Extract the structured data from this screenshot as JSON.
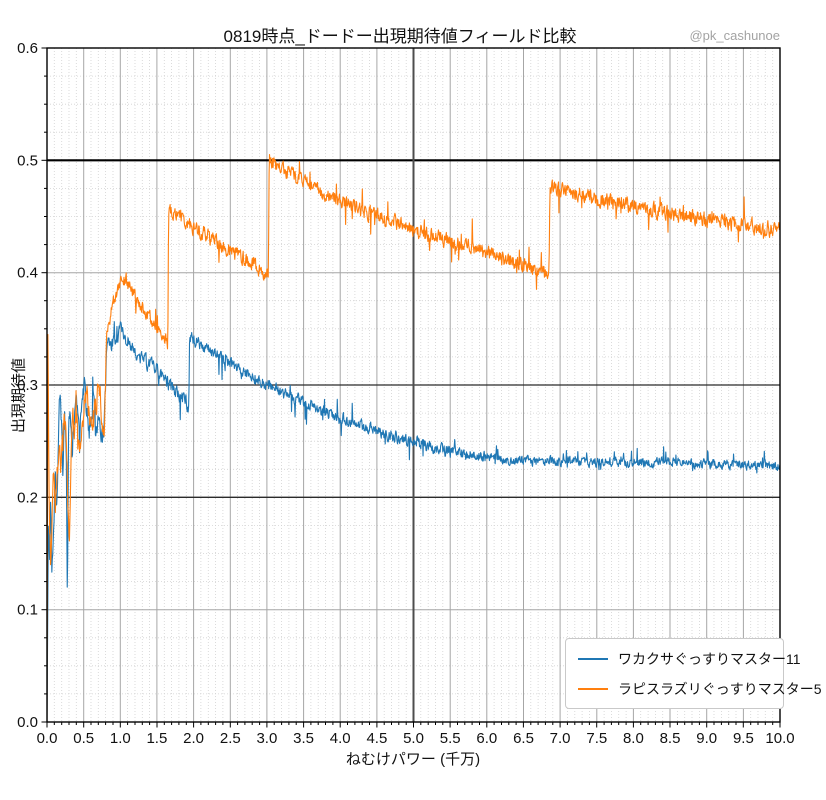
{
  "title": "0819時点_ドードー出現期待値フィールド比較",
  "watermark": "@pk_cashunoe",
  "chart_data": {
    "type": "line",
    "title": "0819時点_ドードー出現期待値フィールド比較",
    "xlabel": "ねむけパワー (千万)",
    "ylabel": "出現期待値",
    "xlim": [
      0,
      10
    ],
    "ylim": [
      0,
      0.6
    ],
    "x_tick_labels": [
      "0.0",
      "0.5",
      "1.0",
      "1.5",
      "2.0",
      "2.5",
      "3.0",
      "3.5",
      "4.0",
      "4.5",
      "5.0",
      "5.5",
      "6.0",
      "6.5",
      "7.0",
      "7.5",
      "8.0",
      "8.5",
      "9.0",
      "9.5",
      "10.0"
    ],
    "y_tick_labels": [
      "0.0",
      "0.1",
      "0.2",
      "0.3",
      "0.4",
      "0.5",
      "0.6"
    ],
    "grid": {
      "major_color": "#a6a6a6",
      "minor_color": "#d2d2d2",
      "x_major_step": 0.5,
      "x_minor_step": 0.1,
      "y_major_step": 0.1,
      "y_minor_step": 0.025
    },
    "reference_lines": [
      {
        "axis": "y",
        "value": 0.5,
        "color": "#000000",
        "width": 2.2
      },
      {
        "axis": "y",
        "value": 0.3,
        "color": "#2b2b2b",
        "width": 1.3
      },
      {
        "axis": "y",
        "value": 0.2,
        "color": "#2b2b2b",
        "width": 1.3
      },
      {
        "axis": "x",
        "value": 5.0,
        "color": "#4d4d4d",
        "width": 2.0
      }
    ],
    "legend_position": "lower right",
    "series": [
      {
        "name": "ワカクサぐっすりマスター11",
        "color": "#1f77b4",
        "noise_zones": [
          [
            0.8,
            0.013
          ],
          [
            1.95,
            0.009
          ],
          [
            6.0,
            0.0075
          ],
          [
            10.0,
            0.006
          ]
        ],
        "keypoints": [
          [
            0.0,
            0.0
          ],
          [
            0.02,
            0.185
          ],
          [
            0.035,
            0.13
          ],
          [
            0.05,
            0.205
          ],
          [
            0.065,
            0.125
          ],
          [
            0.09,
            0.18
          ],
          [
            0.115,
            0.215
          ],
          [
            0.135,
            0.185
          ],
          [
            0.155,
            0.25
          ],
          [
            0.175,
            0.295
          ],
          [
            0.195,
            0.27
          ],
          [
            0.215,
            0.225
          ],
          [
            0.24,
            0.27
          ],
          [
            0.262,
            0.25
          ],
          [
            0.278,
            0.095
          ],
          [
            0.295,
            0.27
          ],
          [
            0.315,
            0.285
          ],
          [
            0.34,
            0.24
          ],
          [
            0.365,
            0.265
          ],
          [
            0.39,
            0.29
          ],
          [
            0.415,
            0.275
          ],
          [
            0.44,
            0.252
          ],
          [
            0.465,
            0.27
          ],
          [
            0.49,
            0.295
          ],
          [
            0.515,
            0.3
          ],
          [
            0.545,
            0.275
          ],
          [
            0.575,
            0.258
          ],
          [
            0.605,
            0.275
          ],
          [
            0.635,
            0.288
          ],
          [
            0.665,
            0.258
          ],
          [
            0.7,
            0.268
          ],
          [
            0.735,
            0.258
          ],
          [
            0.775,
            0.247
          ],
          [
            0.8,
            0.3
          ],
          [
            0.825,
            0.34
          ],
          [
            0.86,
            0.332
          ],
          [
            0.9,
            0.34
          ],
          [
            0.95,
            0.338
          ],
          [
            1.0,
            0.35
          ],
          [
            1.06,
            0.342
          ],
          [
            1.12,
            0.337
          ],
          [
            1.2,
            0.33
          ],
          [
            1.3,
            0.324
          ],
          [
            1.4,
            0.318
          ],
          [
            1.5,
            0.313
          ],
          [
            1.6,
            0.305
          ],
          [
            1.7,
            0.298
          ],
          [
            1.8,
            0.292
          ],
          [
            1.9,
            0.285
          ],
          [
            1.935,
            0.278
          ],
          [
            1.945,
            0.344
          ],
          [
            2.0,
            0.34
          ],
          [
            2.1,
            0.336
          ],
          [
            2.25,
            0.33
          ],
          [
            2.4,
            0.323
          ],
          [
            2.6,
            0.315
          ],
          [
            2.8,
            0.308
          ],
          [
            3.0,
            0.3
          ],
          [
            3.25,
            0.292
          ],
          [
            3.5,
            0.285
          ],
          [
            3.75,
            0.278
          ],
          [
            4.0,
            0.271
          ],
          [
            4.25,
            0.265
          ],
          [
            4.5,
            0.259
          ],
          [
            4.75,
            0.254
          ],
          [
            5.0,
            0.249
          ],
          [
            5.25,
            0.245
          ],
          [
            5.5,
            0.241
          ],
          [
            5.75,
            0.238
          ],
          [
            6.0,
            0.236
          ],
          [
            6.25,
            0.234
          ],
          [
            6.5,
            0.233
          ],
          [
            6.75,
            0.232
          ],
          [
            7.0,
            0.232
          ],
          [
            7.5,
            0.231
          ],
          [
            8.0,
            0.231
          ],
          [
            8.5,
            0.231
          ],
          [
            9.0,
            0.23
          ],
          [
            9.5,
            0.229
          ],
          [
            10.0,
            0.228
          ]
        ]
      },
      {
        "name": "ラピスラズリぐっすりマスター5",
        "color": "#ff7f0e",
        "noise_zones": [
          [
            0.8,
            0.015
          ],
          [
            1.66,
            0.009
          ],
          [
            10.0,
            0.0095
          ]
        ],
        "keypoints": [
          [
            0.0,
            0.0
          ],
          [
            0.012,
            0.345
          ],
          [
            0.03,
            0.19
          ],
          [
            0.05,
            0.125
          ],
          [
            0.07,
            0.185
          ],
          [
            0.09,
            0.222
          ],
          [
            0.115,
            0.188
          ],
          [
            0.14,
            0.222
          ],
          [
            0.165,
            0.248
          ],
          [
            0.19,
            0.222
          ],
          [
            0.215,
            0.252
          ],
          [
            0.24,
            0.275
          ],
          [
            0.265,
            0.252
          ],
          [
            0.285,
            0.2
          ],
          [
            0.305,
            0.168
          ],
          [
            0.33,
            0.24
          ],
          [
            0.355,
            0.275
          ],
          [
            0.38,
            0.258
          ],
          [
            0.405,
            0.272
          ],
          [
            0.43,
            0.252
          ],
          [
            0.455,
            0.238
          ],
          [
            0.48,
            0.262
          ],
          [
            0.51,
            0.282
          ],
          [
            0.545,
            0.293
          ],
          [
            0.58,
            0.272
          ],
          [
            0.615,
            0.255
          ],
          [
            0.65,
            0.273
          ],
          [
            0.685,
            0.29
          ],
          [
            0.72,
            0.298
          ],
          [
            0.75,
            0.272
          ],
          [
            0.78,
            0.255
          ],
          [
            0.795,
            0.3
          ],
          [
            0.81,
            0.342
          ],
          [
            0.85,
            0.358
          ],
          [
            0.9,
            0.373
          ],
          [
            0.95,
            0.383
          ],
          [
            1.0,
            0.39
          ],
          [
            1.05,
            0.394
          ],
          [
            1.1,
            0.39
          ],
          [
            1.18,
            0.381
          ],
          [
            1.26,
            0.372
          ],
          [
            1.34,
            0.364
          ],
          [
            1.42,
            0.357
          ],
          [
            1.5,
            0.351
          ],
          [
            1.58,
            0.345
          ],
          [
            1.64,
            0.34
          ],
          [
            1.648,
            0.337
          ],
          [
            1.658,
            0.455
          ],
          [
            1.75,
            0.451
          ],
          [
            1.9,
            0.445
          ],
          [
            2.05,
            0.439
          ],
          [
            2.2,
            0.432
          ],
          [
            2.4,
            0.424
          ],
          [
            2.6,
            0.416
          ],
          [
            2.8,
            0.407
          ],
          [
            2.95,
            0.401
          ],
          [
            3.02,
            0.397
          ],
          [
            3.032,
            0.499
          ],
          [
            3.2,
            0.492
          ],
          [
            3.4,
            0.485
          ],
          [
            3.6,
            0.477
          ],
          [
            3.8,
            0.47
          ],
          [
            4.0,
            0.464
          ],
          [
            4.25,
            0.457
          ],
          [
            4.5,
            0.451
          ],
          [
            4.75,
            0.445
          ],
          [
            5.0,
            0.439
          ],
          [
            5.25,
            0.433
          ],
          [
            5.5,
            0.428
          ],
          [
            5.75,
            0.423
          ],
          [
            6.0,
            0.417
          ],
          [
            6.25,
            0.412
          ],
          [
            6.5,
            0.407
          ],
          [
            6.7,
            0.402
          ],
          [
            6.85,
            0.397
          ],
          [
            6.862,
            0.478
          ],
          [
            7.0,
            0.474
          ],
          [
            7.25,
            0.47
          ],
          [
            7.5,
            0.466
          ],
          [
            7.75,
            0.462
          ],
          [
            8.0,
            0.459
          ],
          [
            8.25,
            0.456
          ],
          [
            8.5,
            0.453
          ],
          [
            8.75,
            0.45
          ],
          [
            9.0,
            0.447
          ],
          [
            9.25,
            0.444
          ],
          [
            9.5,
            0.442
          ],
          [
            9.75,
            0.44
          ],
          [
            10.0,
            0.438
          ]
        ]
      }
    ]
  }
}
